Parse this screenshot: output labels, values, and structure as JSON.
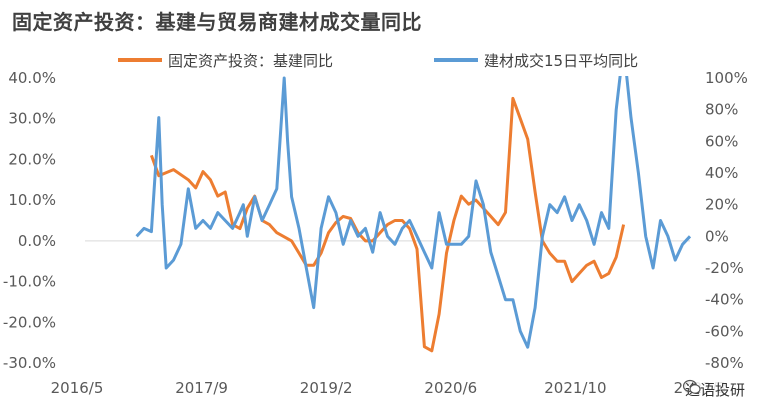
{
  "chart_data": {
    "type": "line",
    "title": "固定资产投资：基建与贸易商建材成交量同比",
    "legend": [
      "固定资产投资：基建同比",
      "建材成交15日平均同比"
    ],
    "legend_placement": "top",
    "x_ticks": [
      "2016/5",
      "2017/9",
      "2019/2",
      "2020/6",
      "2021/10",
      "2023/3"
    ],
    "x_range": [
      "2016-05",
      "2023-03"
    ],
    "y_left_ticks": [
      "40.0%",
      "30.0%",
      "20.0%",
      "10.0%",
      "0.0%",
      "-10.0%",
      "-20.0%",
      "-30.0%"
    ],
    "y_left_range": [
      -30,
      40
    ],
    "y_right_ticks": [
      "100%",
      "80%",
      "60%",
      "40%",
      "20%",
      "0%",
      "-20%",
      "-40%",
      "-60%",
      "-80%"
    ],
    "y_right_range": [
      -80,
      100
    ],
    "colors": {
      "infra": "#ED7D31",
      "steel": "#5B9BD5"
    },
    "series": [
      {
        "name": "固定资产投资：基建同比",
        "axis": "left",
        "points": [
          [
            "2017-02",
            21
          ],
          [
            "2017-03",
            16
          ],
          [
            "2017-05",
            17.5
          ],
          [
            "2017-07",
            15
          ],
          [
            "2017-08",
            13
          ],
          [
            "2017-09",
            17
          ],
          [
            "2017-10",
            15
          ],
          [
            "2017-11",
            11
          ],
          [
            "2017-12",
            12
          ],
          [
            "2018-01",
            4
          ],
          [
            "2018-02",
            3
          ],
          [
            "2018-03",
            8
          ],
          [
            "2018-04",
            11
          ],
          [
            "2018-05",
            5
          ],
          [
            "2018-06",
            4
          ],
          [
            "2018-07",
            2
          ],
          [
            "2018-08",
            1
          ],
          [
            "2018-09",
            0
          ],
          [
            "2018-10",
            -3
          ],
          [
            "2018-11",
            -6
          ],
          [
            "2018-12",
            -6
          ],
          [
            "2019-01",
            -3
          ],
          [
            "2019-02",
            2
          ],
          [
            "2019-03",
            4.5
          ],
          [
            "2019-04",
            6
          ],
          [
            "2019-05",
            5.5
          ],
          [
            "2019-06",
            2
          ],
          [
            "2019-07",
            0
          ],
          [
            "2019-08",
            0
          ],
          [
            "2019-09",
            2
          ],
          [
            "2019-10",
            4
          ],
          [
            "2019-11",
            5
          ],
          [
            "2019-12",
            5
          ],
          [
            "2020-01",
            3
          ],
          [
            "2020-02",
            -2
          ],
          [
            "2020-03",
            -26
          ],
          [
            "2020-04",
            -27
          ],
          [
            "2020-05",
            -18
          ],
          [
            "2020-06",
            -3
          ],
          [
            "2020-07",
            5
          ],
          [
            "2020-08",
            11
          ],
          [
            "2020-09",
            9
          ],
          [
            "2020-10",
            10
          ],
          [
            "2020-11",
            8
          ],
          [
            "2020-12",
            6
          ],
          [
            "2021-01",
            4
          ],
          [
            "2021-02",
            7
          ],
          [
            "2021-03",
            35
          ],
          [
            "2021-04",
            30
          ],
          [
            "2021-05",
            25
          ],
          [
            "2021-06",
            12
          ],
          [
            "2021-07",
            0
          ],
          [
            "2021-08",
            -3
          ],
          [
            "2021-09",
            -5
          ],
          [
            "2021-10",
            -5
          ],
          [
            "2021-11",
            -10
          ],
          [
            "2021-12",
            -8
          ],
          [
            "2022-01",
            -6
          ],
          [
            "2022-02",
            -5
          ],
          [
            "2022-03",
            -9
          ],
          [
            "2022-04",
            -8
          ],
          [
            "2022-05",
            -4
          ],
          [
            "2022-06",
            4
          ]
        ]
      },
      {
        "name": "建材成交15日平均同比",
        "axis": "right",
        "points": [
          [
            "2016-12",
            0
          ],
          [
            "2017-01",
            5
          ],
          [
            "2017-02",
            3
          ],
          [
            "2017-03",
            75
          ],
          [
            "2017-03-15",
            20
          ],
          [
            "2017-04",
            -20
          ],
          [
            "2017-05",
            -15
          ],
          [
            "2017-06",
            -5
          ],
          [
            "2017-07",
            30
          ],
          [
            "2017-08",
            5
          ],
          [
            "2017-09",
            10
          ],
          [
            "2017-10",
            5
          ],
          [
            "2017-11",
            15
          ],
          [
            "2017-12",
            10
          ],
          [
            "2018-01",
            5
          ],
          [
            "2018-02",
            15
          ],
          [
            "2018-02-15",
            20
          ],
          [
            "2018-03",
            0
          ],
          [
            "2018-04",
            25
          ],
          [
            "2018-05",
            10
          ],
          [
            "2018-06",
            20
          ],
          [
            "2018-07",
            30
          ],
          [
            "2018-08",
            100
          ],
          [
            "2018-08-15",
            60
          ],
          [
            "2018-09",
            25
          ],
          [
            "2018-10",
            5
          ],
          [
            "2018-11",
            -20
          ],
          [
            "2018-12",
            -45
          ],
          [
            "2019-01",
            5
          ],
          [
            "2019-02",
            25
          ],
          [
            "2019-03",
            15
          ],
          [
            "2019-04",
            -5
          ],
          [
            "2019-05",
            10
          ],
          [
            "2019-06",
            0
          ],
          [
            "2019-07",
            5
          ],
          [
            "2019-08",
            -10
          ],
          [
            "2019-09",
            15
          ],
          [
            "2019-10",
            0
          ],
          [
            "2019-11",
            -5
          ],
          [
            "2019-12",
            5
          ],
          [
            "2020-01",
            10
          ],
          [
            "2020-02",
            0
          ],
          [
            "2020-03",
            -10
          ],
          [
            "2020-04",
            -20
          ],
          [
            "2020-05",
            15
          ],
          [
            "2020-06",
            -5
          ],
          [
            "2020-07",
            -5
          ],
          [
            "2020-08",
            -5
          ],
          [
            "2020-09",
            0
          ],
          [
            "2020-10",
            35
          ],
          [
            "2020-11",
            20
          ],
          [
            "2020-12",
            -10
          ],
          [
            "2021-01",
            -25
          ],
          [
            "2021-02",
            -40
          ],
          [
            "2021-03",
            -40
          ],
          [
            "2021-04",
            -60
          ],
          [
            "2021-05",
            -70
          ],
          [
            "2021-06",
            -45
          ],
          [
            "2021-07",
            0
          ],
          [
            "2021-08",
            20
          ],
          [
            "2021-09",
            15
          ],
          [
            "2021-10",
            25
          ],
          [
            "2021-11",
            10
          ],
          [
            "2021-12",
            20
          ],
          [
            "2022-01",
            10
          ],
          [
            "2022-02",
            -5
          ],
          [
            "2022-03",
            15
          ],
          [
            "2022-04",
            5
          ],
          [
            "2022-05",
            80
          ],
          [
            "2022-06",
            120
          ],
          [
            "2022-07",
            75
          ],
          [
            "2022-08",
            40
          ],
          [
            "2022-09",
            0
          ],
          [
            "2022-10",
            -20
          ],
          [
            "2022-11",
            10
          ],
          [
            "2022-12",
            0
          ],
          [
            "2023-01",
            -15
          ],
          [
            "2023-02",
            -5
          ],
          [
            "2023-03",
            0
          ]
        ]
      }
    ]
  },
  "watermark": {
    "text": "逸语投研",
    "icon": "wechat-icon"
  }
}
